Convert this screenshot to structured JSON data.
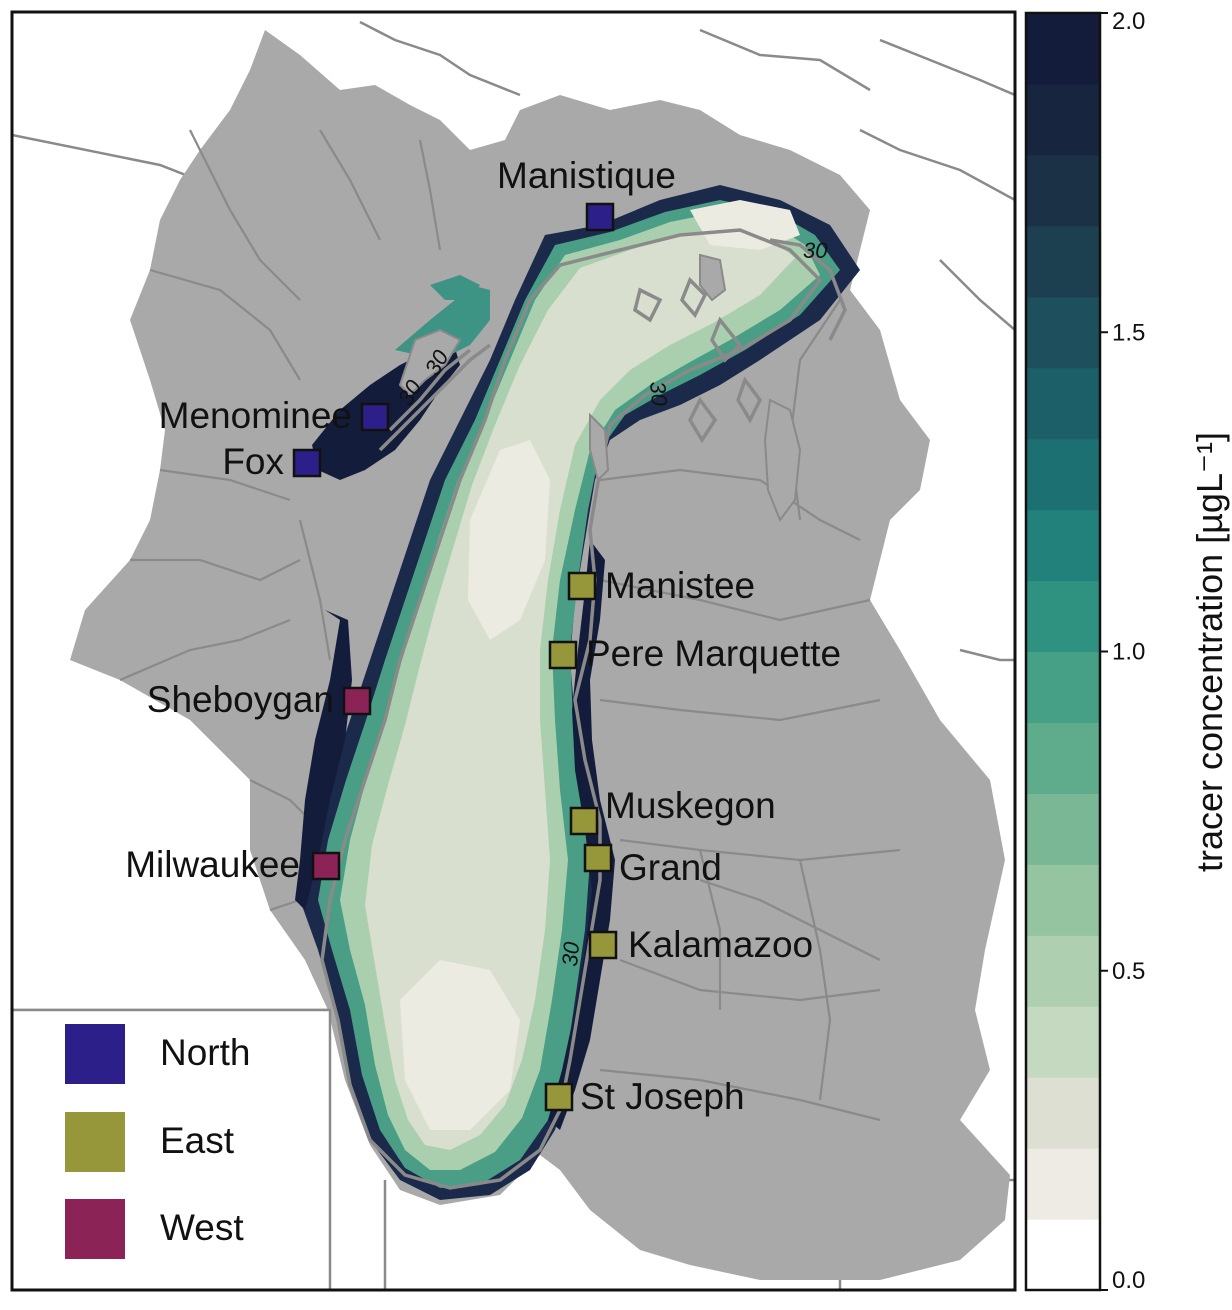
{
  "colors": {
    "land": "#a9a9a9",
    "border": "#8a8a8a",
    "north": "#2d1f8a",
    "east": "#96963a",
    "west": "#8b2356",
    "lake_light": "#e9e8dc",
    "lake_dark": "#141c3c"
  },
  "rivers": [
    {
      "name": "Manistique",
      "group": "north"
    },
    {
      "name": "Menominee",
      "group": "north"
    },
    {
      "name": "Fox",
      "group": "north"
    },
    {
      "name": "Manistee",
      "group": "east"
    },
    {
      "name": "Pere Marquette",
      "group": "east"
    },
    {
      "name": "Sheboygan",
      "group": "west"
    },
    {
      "name": "Muskegon",
      "group": "east"
    },
    {
      "name": "Milwaukee",
      "group": "west"
    },
    {
      "name": "Grand",
      "group": "east"
    },
    {
      "name": "Kalamazoo",
      "group": "east"
    },
    {
      "name": "St Joseph",
      "group": "east"
    }
  ],
  "contour_labels": [
    "30",
    "30",
    "30",
    "30",
    "30"
  ],
  "legend": [
    {
      "label": "North",
      "group": "north"
    },
    {
      "label": "East",
      "group": "east"
    },
    {
      "label": "West",
      "group": "west"
    }
  ],
  "colorbar": {
    "title": "tracer concentration [µgL⁻¹]",
    "ticks": [
      "0.0",
      "0.5",
      "1.0",
      "1.5",
      "2.0"
    ],
    "min": 0.0,
    "max": 2.0,
    "levels": [
      "#ffffff",
      "#edebe3",
      "#dcdfd2",
      "#c5d9c0",
      "#afd0b0",
      "#95c4a1",
      "#7ab895",
      "#5fac8c",
      "#46a086",
      "#2f9281",
      "#22827b",
      "#1d7072",
      "#1d5f68",
      "#1d4f5c",
      "#1c4050",
      "#1b3246",
      "#18253f",
      "#141c3c"
    ]
  }
}
